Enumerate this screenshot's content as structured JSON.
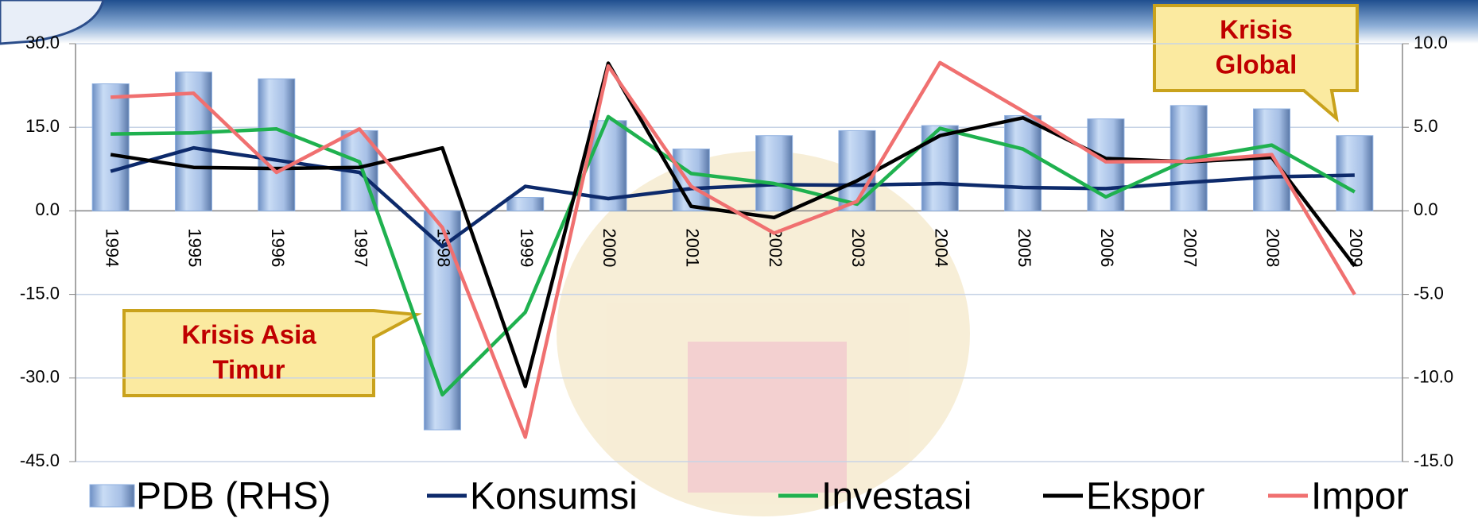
{
  "chart_data": {
    "type": "bar",
    "categories": [
      "1994",
      "1995",
      "1996",
      "1997",
      "1998",
      "1999",
      "2000",
      "2001",
      "2002",
      "2003",
      "2004",
      "2005",
      "2006",
      "2007",
      "2008",
      "2009"
    ],
    "series": [
      {
        "name": "PDB (RHS)",
        "type": "bar",
        "axis": "y2",
        "color": "#8fb0e0",
        "values": [
          7.6,
          8.3,
          7.9,
          4.8,
          -13.1,
          0.8,
          5.4,
          3.7,
          4.5,
          4.8,
          5.1,
          5.7,
          5.5,
          6.3,
          6.1,
          4.5
        ]
      },
      {
        "name": "Konsumsi",
        "type": "line",
        "color": "#0d2a6b",
        "values": [
          7.1,
          11.3,
          9.1,
          6.9,
          -6.4,
          4.4,
          2.2,
          4.0,
          4.7,
          4.6,
          4.9,
          4.2,
          4.0,
          5.1,
          6.1,
          6.4
        ]
      },
      {
        "name": "Investasi",
        "type": "line",
        "color": "#1fb14f",
        "values": [
          13.8,
          14.0,
          14.7,
          8.8,
          -33.0,
          -18.2,
          16.9,
          6.7,
          4.9,
          1.2,
          14.8,
          11.1,
          2.5,
          9.3,
          11.8,
          3.4
        ]
      },
      {
        "name": "Ekspor",
        "type": "line",
        "color": "#000000",
        "values": [
          10.1,
          7.8,
          7.6,
          7.8,
          11.3,
          -31.5,
          26.5,
          0.8,
          -1.2,
          5.4,
          13.5,
          16.7,
          9.4,
          8.8,
          9.6,
          -9.9
        ]
      },
      {
        "name": "Impor",
        "type": "line",
        "color": "#f07070",
        "values": [
          20.4,
          21.1,
          6.9,
          14.7,
          -3.0,
          -40.6,
          26.0,
          4.4,
          -4.0,
          1.7,
          26.6,
          17.9,
          8.8,
          8.9,
          10.1,
          -15.0
        ]
      }
    ],
    "ylim": [
      -45,
      30
    ],
    "yticks": [
      {
        "value": -45,
        "label": "-45.0"
      },
      {
        "value": -30,
        "label": "-30.0"
      },
      {
        "value": -15,
        "label": "-15.0"
      },
      {
        "value": 0,
        "label": "0.0"
      },
      {
        "value": 15,
        "label": "15.0"
      },
      {
        "value": 30,
        "label": "30.0"
      }
    ],
    "y2lim": [
      -15,
      10
    ],
    "y2ticks": [
      {
        "value": -15,
        "label": "-15.0"
      },
      {
        "value": -10,
        "label": "-10.0"
      },
      {
        "value": -5,
        "label": "-5.0"
      },
      {
        "value": 0,
        "label": "0.0"
      },
      {
        "value": 5,
        "label": "5.0"
      },
      {
        "value": 10,
        "label": "10.0"
      }
    ],
    "grid": true,
    "legend": "bottom",
    "annotations": [
      {
        "lines": [
          "Krisis",
          "Global"
        ]
      },
      {
        "lines": [
          "Krisis Asia",
          "Timur"
        ]
      }
    ]
  }
}
